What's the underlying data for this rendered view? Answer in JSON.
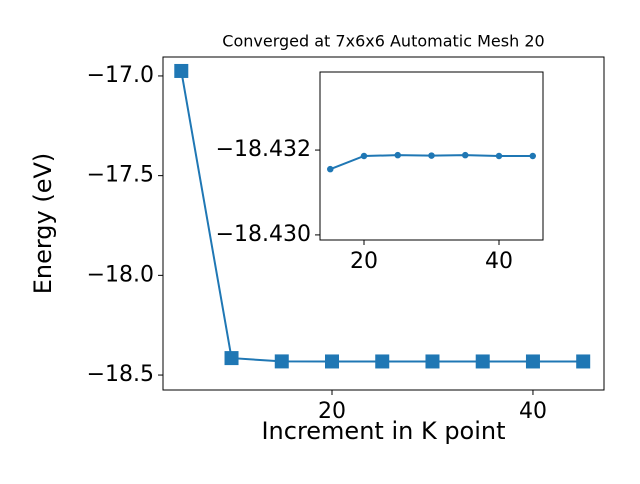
{
  "chart_data": [
    {
      "type": "line",
      "title": "Converged at 7x6x6 Automatic Mesh 20",
      "x_label": "Increment in K point",
      "y_label": "Energy (eV)",
      "x": [
        5,
        10,
        15,
        20,
        25,
        30,
        35,
        40,
        45
      ],
      "series": [
        {
          "color": "#1f77b4",
          "marker": "square",
          "values": [
            -16.975,
            -18.415,
            -18.4316,
            -18.4319,
            -18.4319,
            -18.4319,
            -18.4319,
            -18.4319,
            -18.4319
          ]
        }
      ],
      "xlim": [
        3.18,
        47.07
      ],
      "xticks": [
        20,
        40
      ],
      "ylim": [
        -18.575,
        -16.905
      ],
      "yticks": [
        {
          "value": -18.5,
          "label": "−18.5"
        },
        {
          "value": -18.0,
          "label": "−18.0"
        },
        {
          "value": -17.5,
          "label": "−17.5"
        },
        {
          "value": -17.0,
          "label": "−17.0"
        }
      ]
    },
    {
      "type": "line",
      "x": [
        15,
        20,
        25,
        30,
        35,
        40,
        45
      ],
      "series": [
        {
          "color": "#1f77b4",
          "marker": "circle",
          "values": [
            -18.43155,
            -18.43186,
            -18.43188,
            -18.43187,
            -18.43188,
            -18.43186,
            -18.43186
          ]
        }
      ],
      "xlim": [
        13.48,
        46.52
      ],
      "xticks": [
        20,
        40
      ],
      "ylim": [
        -18.42988,
        -18.43384
      ],
      "yticks": [
        {
          "value": -18.43,
          "label": "−18.430"
        },
        {
          "value": -18.432,
          "label": "−18.432"
        }
      ]
    }
  ]
}
